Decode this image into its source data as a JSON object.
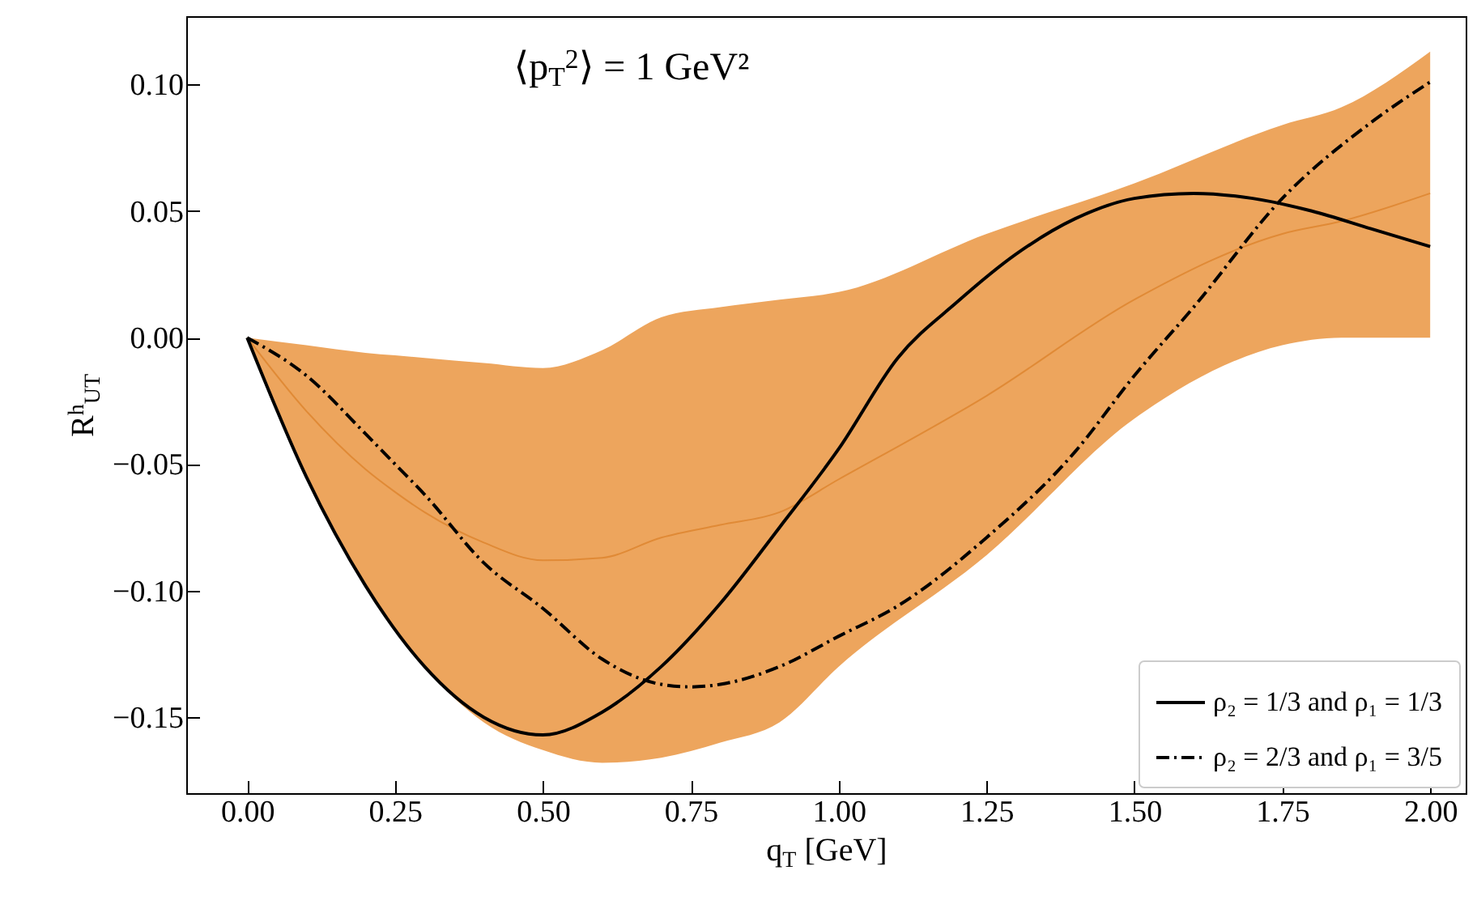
{
  "chart_data": {
    "type": "line",
    "title": "⟨p$_{T}$$^{2}$⟩ = 1 GeV²",
    "xlabel": "q$_{T}$ [GeV]",
    "ylabel": "R$^{h}$$_{UT}$",
    "xlim": [
      -0.103,
      2.06
    ],
    "ylim": [
      -0.18,
      0.127
    ],
    "xticks": [
      {
        "value": 0,
        "label": "0.00"
      },
      {
        "value": 0.25,
        "label": "0.25"
      },
      {
        "value": 0.5,
        "label": "0.50"
      },
      {
        "value": 0.75,
        "label": "0.75"
      },
      {
        "value": 1,
        "label": "1.00"
      },
      {
        "value": 1.25,
        "label": "1.25"
      },
      {
        "value": 1.5,
        "label": "1.50"
      },
      {
        "value": 1.75,
        "label": "1.75"
      },
      {
        "value": 2,
        "label": "2.00"
      }
    ],
    "yticks": [
      {
        "value": -0.15,
        "label": "−0.15"
      },
      {
        "value": -0.1,
        "label": "−0.10"
      },
      {
        "value": -0.05,
        "label": "−0.05"
      },
      {
        "value": 0,
        "label": "0.00"
      },
      {
        "value": 0.05,
        "label": "0.05"
      },
      {
        "value": 0.1,
        "label": "0.10"
      }
    ],
    "legend": "bottom right",
    "marker": "none",
    "grid": false,
    "series": [
      {
        "type": "line",
        "color": "#e08a36",
        "line_style": "solid",
        "x": [
          0,
          0.1,
          0.2,
          0.25,
          0.3,
          0.4,
          0.5,
          0.6,
          0.7,
          0.8,
          0.9,
          1.0,
          1.25,
          1.5,
          1.75,
          1.85,
          2.0
        ],
        "values": [
          0,
          -0.029,
          -0.052,
          -0.061,
          -0.069,
          -0.081,
          -0.088,
          -0.087,
          -0.079,
          -0.074,
          -0.069,
          -0.056,
          -0.023,
          0.015,
          0.041,
          0.046,
          0.057
        ],
        "lower": [
          0,
          -0.055,
          -0.098,
          -0.115,
          -0.13,
          -0.152,
          -0.163,
          -0.168,
          -0.166,
          -0.16,
          -0.152,
          -0.13,
          -0.086,
          -0.032,
          -0.003,
          0,
          0
        ],
        "upper": [
          0,
          -0.003,
          -0.006,
          -0.007,
          -0.008,
          -0.01,
          -0.012,
          -0.005,
          0.008,
          0.012,
          0.015,
          0.018,
          0.041,
          0.061,
          0.084,
          0.091,
          0.113
        ]
      },
      {
        "name": "ρ₂ = 1/3 and ρ₁ = 1/3",
        "color": "#000000",
        "line_style": "solid",
        "x": [
          0,
          0.1,
          0.2,
          0.3,
          0.4,
          0.5,
          0.6,
          0.7,
          0.8,
          0.9,
          1.0,
          1.1,
          1.2,
          1.3,
          1.4,
          1.5,
          1.6,
          1.7,
          1.8,
          1.9,
          2.0
        ],
        "values": [
          0,
          -0.055,
          -0.098,
          -0.13,
          -0.15,
          -0.157,
          -0.148,
          -0.13,
          -0.105,
          -0.075,
          -0.044,
          -0.008,
          0.014,
          0.033,
          0.047,
          0.055,
          0.057,
          0.055,
          0.05,
          0.043,
          0.036
        ]
      },
      {
        "name": "ρ₂ = 2/3 and ρ₁ = 3/5",
        "color": "#000000",
        "line_style": "dashdot",
        "x": [
          0,
          0.1,
          0.2,
          0.25,
          0.3,
          0.4,
          0.5,
          0.6,
          0.7,
          0.75,
          0.8,
          0.9,
          1.0,
          1.1,
          1.25,
          1.4,
          1.5,
          1.6,
          1.75,
          1.9,
          2.0
        ],
        "values": [
          0,
          -0.015,
          -0.038,
          -0.05,
          -0.062,
          -0.089,
          -0.107,
          -0.127,
          -0.137,
          -0.138,
          -0.137,
          -0.13,
          -0.118,
          -0.106,
          -0.079,
          -0.045,
          -0.015,
          0.012,
          0.055,
          0.085,
          0.101
        ]
      }
    ]
  }
}
